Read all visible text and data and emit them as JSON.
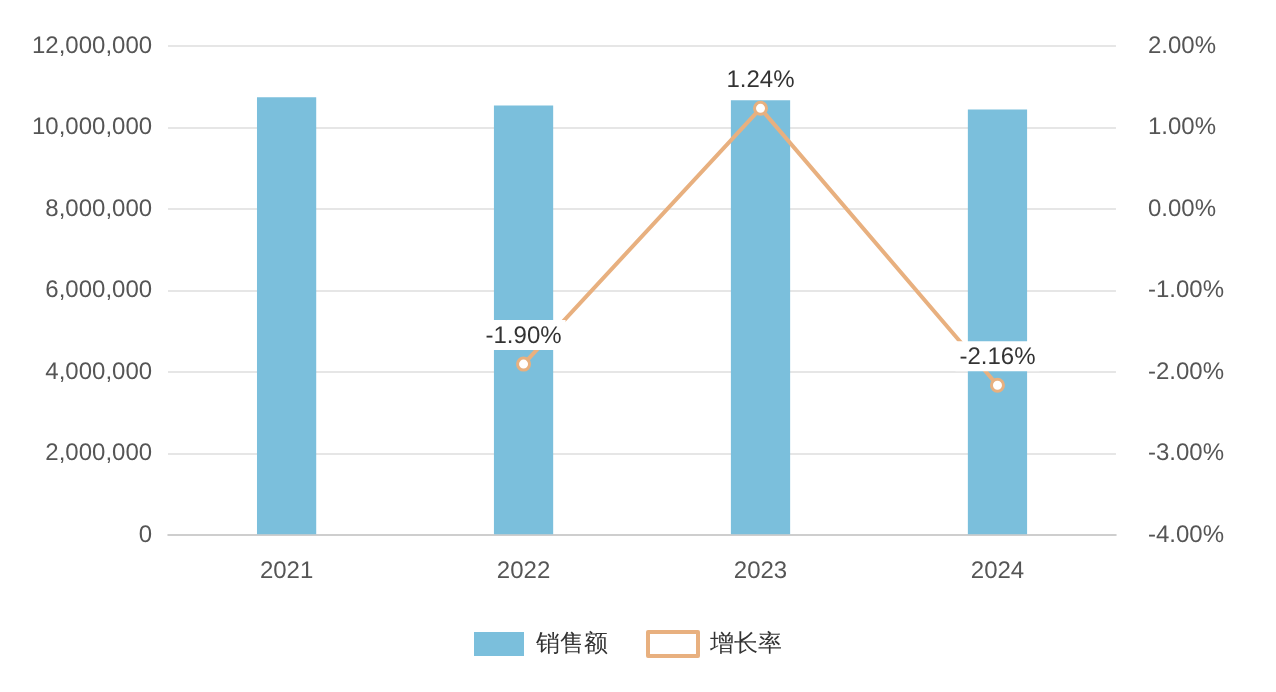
{
  "chart_data": {
    "type": "bar",
    "categories": [
      "2021",
      "2022",
      "2023",
      "2024"
    ],
    "series": [
      {
        "name": "销售额",
        "color": "#7bbfdc",
        "values": [
          10750000,
          10550000,
          10680000,
          10450000
        ]
      },
      {
        "name": "增长率",
        "type": "line",
        "axis": "y2",
        "color": "#e8b07f",
        "values": [
          null,
          -1.9,
          1.24,
          -2.16
        ],
        "value_labels": [
          null,
          "-1.90%",
          "1.24%",
          "-2.16%"
        ]
      }
    ],
    "ylim": [
      0,
      12000000
    ],
    "yticks": [
      {
        "value": 0,
        "label": "0"
      },
      {
        "value": 2000000,
        "label": "2,000,000"
      },
      {
        "value": 4000000,
        "label": "4,000,000"
      },
      {
        "value": 6000000,
        "label": "6,000,000"
      },
      {
        "value": 8000000,
        "label": "8,000,000"
      },
      {
        "value": 10000000,
        "label": "10,000,000"
      },
      {
        "value": 12000000,
        "label": "12,000,000"
      }
    ],
    "y2lim": [
      -4,
      2
    ],
    "y2ticks": [
      {
        "value": -4,
        "label": "-4.00%"
      },
      {
        "value": -3,
        "label": "-3.00%"
      },
      {
        "value": -2,
        "label": "-2.00%"
      },
      {
        "value": -1,
        "label": "-1.00%"
      },
      {
        "value": 0,
        "label": "0.00%"
      },
      {
        "value": 1,
        "label": "1.00%"
      },
      {
        "value": 2,
        "label": "2.00%"
      }
    ],
    "grid": "y",
    "legend": "bottom",
    "marker": "circle"
  }
}
